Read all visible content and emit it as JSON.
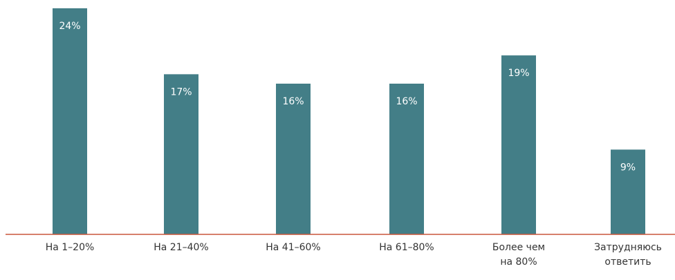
{
  "chart_data": {
    "type": "bar",
    "categories": [
      [
        "На 1–20%"
      ],
      [
        "На 21–40%"
      ],
      [
        "На 41–60%"
      ],
      [
        "На 61–80%"
      ],
      [
        "Более чем",
        "на 80%"
      ],
      [
        "Затрудняюсь",
        "ответить"
      ]
    ],
    "values": [
      24,
      17,
      16,
      16,
      19,
      9
    ],
    "value_labels": [
      "24%",
      "17%",
      "16%",
      "16%",
      "19%",
      "9%"
    ],
    "ylim": [
      0,
      24
    ],
    "grid": false,
    "legend": "none",
    "title": "",
    "xlabel": "",
    "ylabel": ""
  },
  "colors": {
    "bar": "#437e87",
    "axis": "#c9573a",
    "bar_label": "#ffffff",
    "category_label": "#333333"
  }
}
